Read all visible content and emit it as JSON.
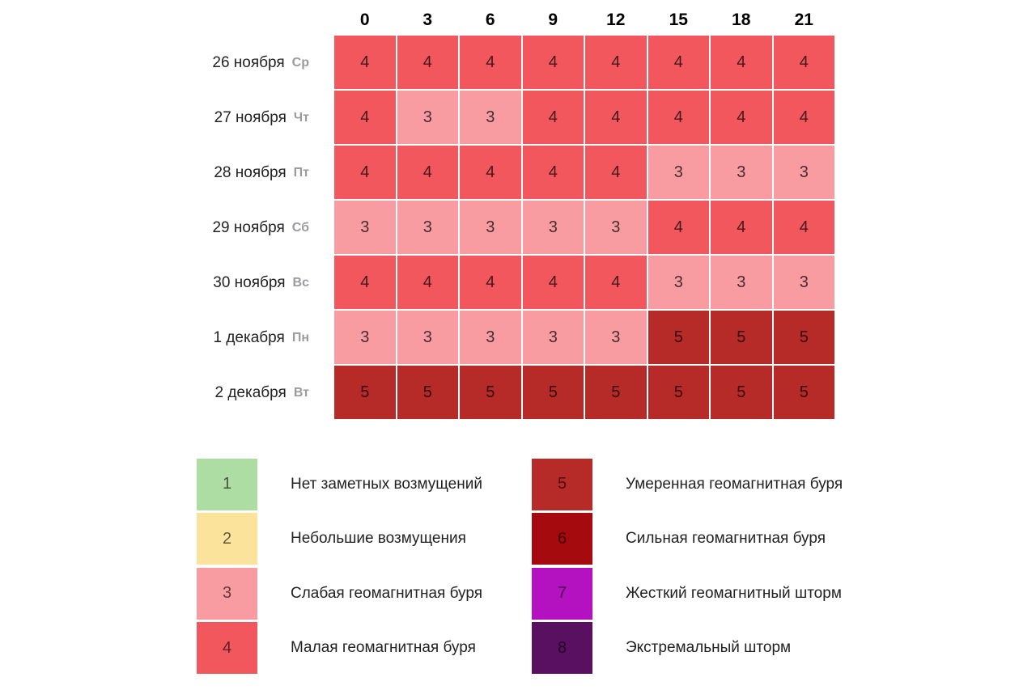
{
  "chart_data": {
    "type": "heatmap",
    "x": [
      "0",
      "3",
      "6",
      "9",
      "12",
      "15",
      "18",
      "21"
    ],
    "y": [
      {
        "date": "26 ноября",
        "weekday": "Ср"
      },
      {
        "date": "27 ноября",
        "weekday": "Чт"
      },
      {
        "date": "28 ноября",
        "weekday": "Пт"
      },
      {
        "date": "29 ноября",
        "weekday": "Сб"
      },
      {
        "date": "30 ноября",
        "weekday": "Вс"
      },
      {
        "date": "1 декабря",
        "weekday": "Пн"
      },
      {
        "date": "2 декабря",
        "weekday": "Вт"
      }
    ],
    "values": [
      [
        4,
        4,
        4,
        4,
        4,
        4,
        4,
        4
      ],
      [
        4,
        3,
        3,
        4,
        4,
        4,
        4,
        4
      ],
      [
        4,
        4,
        4,
        4,
        4,
        3,
        3,
        3
      ],
      [
        3,
        3,
        3,
        3,
        3,
        4,
        4,
        4
      ],
      [
        4,
        4,
        4,
        4,
        4,
        3,
        3,
        3
      ],
      [
        3,
        3,
        3,
        3,
        3,
        5,
        5,
        5
      ],
      [
        5,
        5,
        5,
        5,
        5,
        5,
        5,
        5
      ]
    ],
    "levels": [
      {
        "level": 1,
        "color": "#aedda4",
        "label": "Нет заметных возмущений"
      },
      {
        "level": 2,
        "color": "#fbe39c",
        "label": "Небольшие возмущения"
      },
      {
        "level": 3,
        "color": "#f89ca1",
        "label": "Слабая геомагнитная буря"
      },
      {
        "level": 4,
        "color": "#f2575d",
        "label": "Малая геомагнитная буря"
      },
      {
        "level": 5,
        "color": "#b62a27",
        "label": "Умеренная геомагнитная буря"
      },
      {
        "level": 6,
        "color": "#a50a0f",
        "label": "Сильная геомагнитная буря"
      },
      {
        "level": 7,
        "color": "#b411c0",
        "label": "Жесткий геомагнитный шторм"
      },
      {
        "level": 8,
        "color": "#5a1061",
        "label": "Экстремальный шторм"
      }
    ],
    "legend_columns": [
      [
        1,
        2,
        3,
        4
      ],
      [
        5,
        6,
        7,
        8
      ]
    ],
    "legend_position": "bottom",
    "grid": false,
    "title": ""
  }
}
